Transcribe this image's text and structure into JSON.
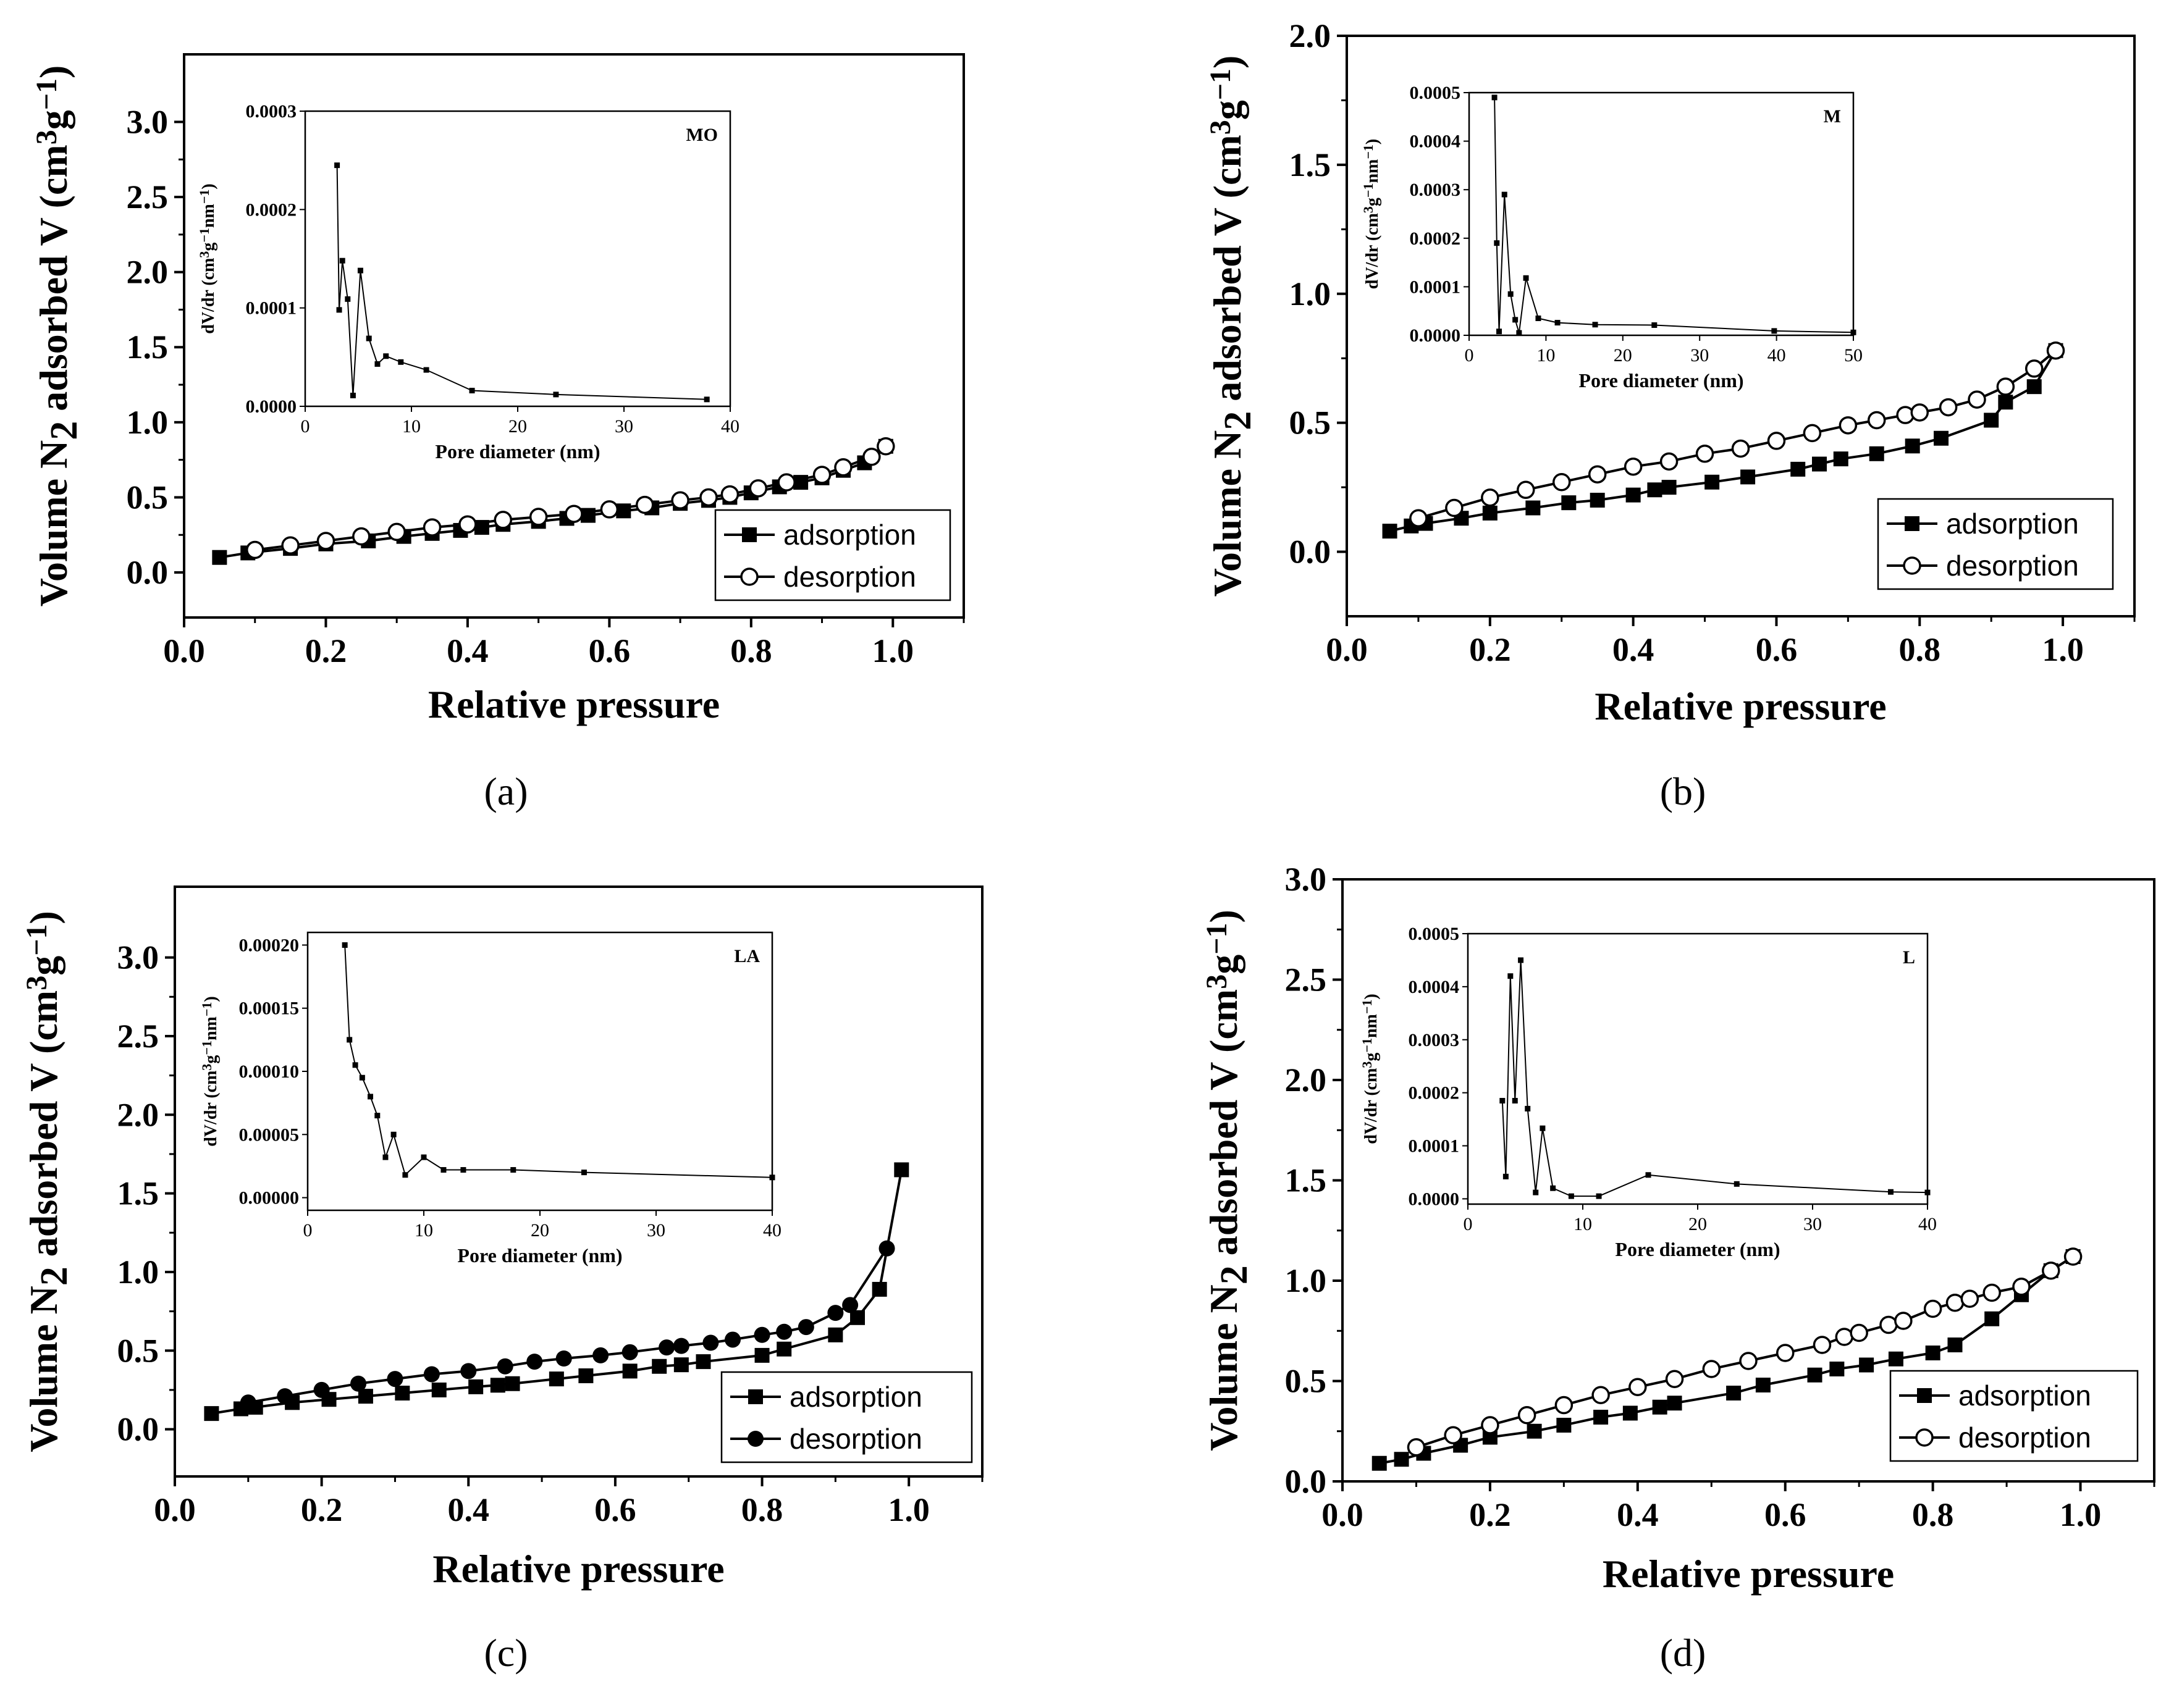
{
  "figure": {
    "captions": [
      "(a)",
      "(b)",
      "(c)",
      "(d)"
    ]
  },
  "chart_data": [
    {
      "id": "a",
      "type": "scatter",
      "caption": "(a)",
      "xlabel": "Relative pressure",
      "ylabel": "Volume N2 adsorbed V (cm3g-1)",
      "xlim": [
        0.0,
        1.1
      ],
      "ylim": [
        -0.3,
        3.45
      ],
      "xticks": [
        "0.0",
        "0.2",
        "0.4",
        "0.6",
        "0.8",
        "1.0"
      ],
      "yticks": [
        "0.0",
        "0.5",
        "1.0",
        "1.5",
        "2.0",
        "2.5",
        "3.0"
      ],
      "legend": {
        "position": "bottom-right",
        "entries": [
          "adsorption",
          "desorption"
        ]
      },
      "series": [
        {
          "name": "adsorption",
          "marker": "filled-square",
          "x": [
            0.05,
            0.09,
            0.15,
            0.2,
            0.26,
            0.31,
            0.35,
            0.39,
            0.42,
            0.45,
            0.5,
            0.54,
            0.57,
            0.62,
            0.66,
            0.7,
            0.74,
            0.77,
            0.8,
            0.84,
            0.87,
            0.9,
            0.93,
            0.96,
            0.99
          ],
          "y": [
            0.1,
            0.13,
            0.16,
            0.19,
            0.21,
            0.24,
            0.26,
            0.28,
            0.3,
            0.32,
            0.34,
            0.36,
            0.38,
            0.41,
            0.43,
            0.46,
            0.48,
            0.5,
            0.53,
            0.57,
            0.6,
            0.63,
            0.68,
            0.73,
            0.84
          ]
        },
        {
          "name": "desorption",
          "marker": "open-circle",
          "x": [
            0.1,
            0.15,
            0.2,
            0.25,
            0.3,
            0.35,
            0.4,
            0.45,
            0.5,
            0.55,
            0.6,
            0.65,
            0.7,
            0.74,
            0.77,
            0.81,
            0.85,
            0.9,
            0.93,
            0.97,
            0.99
          ],
          "y": [
            0.15,
            0.18,
            0.21,
            0.24,
            0.27,
            0.3,
            0.32,
            0.35,
            0.37,
            0.39,
            0.42,
            0.45,
            0.48,
            0.5,
            0.52,
            0.56,
            0.6,
            0.65,
            0.7,
            0.77,
            0.84
          ]
        }
      ],
      "inset": {
        "label": "MO",
        "xlabel": "Pore diameter (nm)",
        "ylabel": "dV/dr (cm3g-1nm-1)",
        "xlim": [
          0,
          40
        ],
        "ylim": [
          0,
          0.0003
        ],
        "xticks": [
          "0",
          "10",
          "20",
          "30",
          "40"
        ],
        "yticks": [
          "0.0000",
          "0.0001",
          "0.0002",
          "0.0003"
        ],
        "x": [
          3.0,
          3.2,
          3.5,
          4.0,
          4.5,
          5.2,
          6.0,
          6.8,
          7.6,
          9.0,
          11.4,
          15.7,
          23.6,
          37.8
        ],
        "y": [
          0.000245,
          9.8e-05,
          0.000148,
          0.000109,
          1.1e-05,
          0.000138,
          6.9e-05,
          4.3e-05,
          5.1e-05,
          4.5e-05,
          3.7e-05,
          1.6e-05,
          1.2e-05,
          7e-06
        ]
      }
    },
    {
      "id": "b",
      "type": "scatter",
      "caption": "(b)",
      "xlabel": "Relative pressure",
      "ylabel": "Volume N2 adsorbed V (cm3g-1)",
      "xlim": [
        0.0,
        1.1
      ],
      "ylim": [
        -0.25,
        2.0
      ],
      "xticks": [
        "0.0",
        "0.2",
        "0.4",
        "0.6",
        "0.8",
        "1.0"
      ],
      "yticks": [
        "0.0",
        "0.5",
        "1.0",
        "1.5",
        "2.0"
      ],
      "legend": {
        "position": "bottom-right",
        "entries": [
          "adsorption",
          "desorption"
        ]
      },
      "series": [
        {
          "name": "adsorption",
          "marker": "filled-square",
          "x": [
            0.06,
            0.09,
            0.11,
            0.16,
            0.2,
            0.26,
            0.31,
            0.35,
            0.4,
            0.43,
            0.45,
            0.51,
            0.56,
            0.63,
            0.66,
            0.69,
            0.74,
            0.79,
            0.83,
            0.9,
            0.92,
            0.96,
            0.99
          ],
          "y": [
            0.08,
            0.1,
            0.11,
            0.13,
            0.15,
            0.17,
            0.19,
            0.2,
            0.22,
            0.24,
            0.25,
            0.27,
            0.29,
            0.32,
            0.34,
            0.36,
            0.38,
            0.41,
            0.44,
            0.51,
            0.58,
            0.64,
            0.78
          ]
        },
        {
          "name": "desorption",
          "marker": "open-circle",
          "x": [
            0.1,
            0.15,
            0.2,
            0.25,
            0.3,
            0.35,
            0.4,
            0.45,
            0.5,
            0.55,
            0.6,
            0.65,
            0.7,
            0.74,
            0.78,
            0.8,
            0.84,
            0.88,
            0.92,
            0.96,
            0.99
          ],
          "y": [
            0.13,
            0.17,
            0.21,
            0.24,
            0.27,
            0.3,
            0.33,
            0.35,
            0.38,
            0.4,
            0.43,
            0.46,
            0.49,
            0.51,
            0.53,
            0.54,
            0.56,
            0.59,
            0.64,
            0.71,
            0.78
          ]
        }
      ],
      "inset": {
        "label": "M",
        "xlabel": "Pore diameter (nm)",
        "ylabel": "dV/dr (cm3g-1nm-1)",
        "xlim": [
          0,
          50
        ],
        "ylim": [
          0,
          0.0005
        ],
        "xticks": [
          "0",
          "10",
          "20",
          "30",
          "40",
          "50"
        ],
        "yticks": [
          "0.0000",
          "0.0001",
          "0.0002",
          "0.0003",
          "0.0004",
          "0.0005"
        ],
        "x": [
          3.3,
          3.6,
          3.9,
          4.6,
          5.4,
          6.0,
          6.5,
          7.4,
          9.0,
          11.5,
          16.4,
          24.1,
          39.7,
          50.0
        ],
        "y": [
          0.00049,
          0.00019,
          8e-06,
          0.00029,
          8.5e-05,
          3.2e-05,
          5e-06,
          0.000118,
          3.5e-05,
          2.6e-05,
          2.2e-05,
          2.1e-05,
          9e-06,
          6e-06
        ]
      }
    },
    {
      "id": "c",
      "type": "scatter",
      "caption": "(c)",
      "xlabel": "Relative pressure",
      "ylabel": "Volume N2 adsorbed V (cm3g-1)",
      "xlim": [
        0.0,
        1.1
      ],
      "ylim": [
        -0.3,
        3.45
      ],
      "xticks": [
        "0.0",
        "0.2",
        "0.4",
        "0.6",
        "0.8",
        "1.0"
      ],
      "yticks": [
        "0.0",
        "0.5",
        "1.0",
        "1.5",
        "2.0",
        "2.5",
        "3.0"
      ],
      "legend": {
        "position": "bottom-right",
        "entries": [
          "adsorption",
          "desorption"
        ]
      },
      "series": [
        {
          "name": "adsorption",
          "marker": "filled-square",
          "x": [
            0.05,
            0.09,
            0.11,
            0.16,
            0.21,
            0.26,
            0.31,
            0.36,
            0.41,
            0.44,
            0.46,
            0.52,
            0.56,
            0.62,
            0.66,
            0.69,
            0.72,
            0.8,
            0.83,
            0.9,
            0.93,
            0.96,
            0.99
          ],
          "y": [
            0.1,
            0.13,
            0.14,
            0.17,
            0.19,
            0.21,
            0.23,
            0.25,
            0.27,
            0.28,
            0.29,
            0.32,
            0.34,
            0.37,
            0.4,
            0.41,
            0.43,
            0.47,
            0.51,
            0.6,
            0.71,
            0.89,
            1.65
          ]
        },
        {
          "name": "desorption",
          "marker": "filled-circle",
          "x": [
            0.1,
            0.15,
            0.2,
            0.25,
            0.3,
            0.35,
            0.4,
            0.45,
            0.49,
            0.53,
            0.58,
            0.62,
            0.67,
            0.69,
            0.73,
            0.76,
            0.8,
            0.83,
            0.86,
            0.9,
            0.92,
            0.97
          ],
          "y": [
            0.17,
            0.21,
            0.25,
            0.29,
            0.32,
            0.35,
            0.37,
            0.4,
            0.43,
            0.45,
            0.47,
            0.49,
            0.52,
            0.53,
            0.55,
            0.57,
            0.6,
            0.62,
            0.65,
            0.74,
            0.79,
            1.15
          ]
        }
      ],
      "inset": {
        "label": "LA",
        "xlabel": "Pore diameter (nm)",
        "ylabel": "dV/dr (cm3g-1nm-1)",
        "xlim": [
          0,
          40
        ],
        "ylim": [
          -1e-05,
          0.00021
        ],
        "xticks": [
          "0",
          "10",
          "20",
          "30",
          "40"
        ],
        "yticks": [
          "0.00000",
          "0.00005",
          "0.00010",
          "0.00015",
          "0.00020"
        ],
        "x": [
          3.2,
          3.6,
          4.1,
          4.7,
          5.4,
          6.0,
          6.7,
          7.4,
          8.4,
          10.0,
          11.7,
          13.4,
          17.7,
          23.8,
          40.0
        ],
        "y": [
          0.0002,
          0.000125,
          0.000105,
          9.5e-05,
          8e-05,
          6.5e-05,
          3.2e-05,
          5e-05,
          1.8e-05,
          3.2e-05,
          2.2e-05,
          2.2e-05,
          2.2e-05,
          2e-05,
          1.6e-05
        ]
      }
    },
    {
      "id": "d",
      "type": "scatter",
      "caption": "(d)",
      "xlabel": "Relative pressure",
      "ylabel": "Volume N2 adsorbed V (cm3g-1)",
      "xlim": [
        0.0,
        1.1
      ],
      "ylim": [
        0.0,
        3.0
      ],
      "xticks": [
        "0.0",
        "0.2",
        "0.4",
        "0.6",
        "0.8",
        "1.0"
      ],
      "yticks": [
        "0.0",
        "0.5",
        "1.0",
        "1.5",
        "2.0",
        "2.5",
        "3.0"
      ],
      "legend": {
        "position": "bottom-right",
        "entries": [
          "adsorption",
          "desorption"
        ]
      },
      "series": [
        {
          "name": "adsorption",
          "marker": "filled-square",
          "x": [
            0.05,
            0.08,
            0.11,
            0.16,
            0.2,
            0.26,
            0.3,
            0.35,
            0.39,
            0.43,
            0.45,
            0.53,
            0.57,
            0.64,
            0.67,
            0.71,
            0.75,
            0.8,
            0.83,
            0.88,
            0.92,
            0.96,
            0.99
          ],
          "y": [
            0.09,
            0.11,
            0.14,
            0.18,
            0.22,
            0.25,
            0.28,
            0.32,
            0.34,
            0.37,
            0.39,
            0.44,
            0.48,
            0.53,
            0.56,
            0.58,
            0.61,
            0.64,
            0.68,
            0.81,
            0.93,
            1.05,
            1.12
          ]
        },
        {
          "name": "desorption",
          "marker": "open-circle",
          "x": [
            0.1,
            0.15,
            0.2,
            0.25,
            0.3,
            0.35,
            0.4,
            0.45,
            0.5,
            0.55,
            0.6,
            0.65,
            0.68,
            0.7,
            0.74,
            0.76,
            0.8,
            0.83,
            0.85,
            0.88,
            0.92,
            0.96,
            0.99
          ],
          "y": [
            0.17,
            0.23,
            0.28,
            0.33,
            0.38,
            0.43,
            0.47,
            0.51,
            0.56,
            0.6,
            0.64,
            0.68,
            0.72,
            0.74,
            0.78,
            0.8,
            0.86,
            0.89,
            0.91,
            0.94,
            0.97,
            1.05,
            1.12
          ]
        }
      ],
      "inset": {
        "label": "L",
        "xlabel": "Pore diameter (nm)",
        "ylabel": "dV/dr (cm3g-1nm-1)",
        "xlim": [
          0,
          40
        ],
        "ylim": [
          -1e-05,
          0.0005
        ],
        "xticks": [
          "0",
          "10",
          "20",
          "30",
          "40"
        ],
        "yticks": [
          "0.0000",
          "0.0001",
          "0.0002",
          "0.0003",
          "0.0004",
          "0.0005"
        ],
        "x": [
          3.0,
          3.3,
          3.7,
          4.1,
          4.6,
          5.2,
          5.9,
          6.5,
          7.4,
          9.0,
          11.4,
          15.7,
          23.4,
          36.8,
          40.0
        ],
        "y": [
          0.000185,
          4.2e-05,
          0.00042,
          0.000185,
          0.00045,
          0.00017,
          1.2e-05,
          0.000133,
          2e-05,
          5e-06,
          5e-06,
          4.5e-05,
          2.8e-05,
          1.3e-05,
          1.2e-05
        ]
      }
    }
  ]
}
